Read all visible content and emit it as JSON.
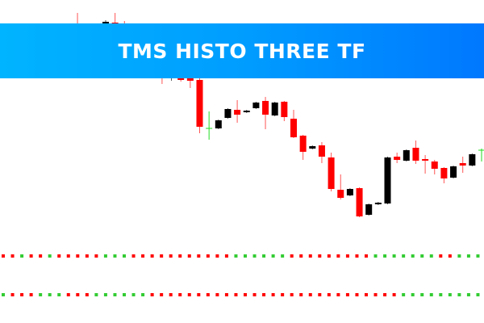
{
  "banner": {
    "title": "TMS HISTO THREE TF"
  },
  "colors": {
    "bull_body": "#000000",
    "bear_body": "#ff0000",
    "doji": "#22dd22",
    "dot_red": "#ff0000",
    "dot_green": "#33cc33",
    "banner_left": "#00b4ff",
    "banner_right": "#0078ff"
  },
  "chart_data": {
    "type": "candlestick",
    "candles": [
      {
        "o": 365,
        "h": 384,
        "l": 340,
        "c": 350
      },
      {
        "o": 345,
        "h": 360,
        "l": 340,
        "c": 355
      },
      {
        "o": 355,
        "h": 362,
        "l": 344,
        "c": 348
      },
      {
        "o": 360,
        "h": 375,
        "l": 357,
        "c": 373
      },
      {
        "o": 372,
        "h": 384,
        "l": 352,
        "c": 360
      },
      {
        "o": 362,
        "h": 374,
        "l": 345,
        "c": 350
      },
      {
        "o": 345,
        "h": 356,
        "l": 340,
        "c": 352
      },
      {
        "o": 350,
        "h": 355,
        "l": 330,
        "c": 335
      },
      {
        "o": 336,
        "h": 340,
        "l": 315,
        "c": 322
      },
      {
        "o": 322,
        "h": 326,
        "l": 296,
        "c": 310
      },
      {
        "o": 305,
        "h": 315,
        "l": 300,
        "c": 312
      },
      {
        "o": 304,
        "h": 306,
        "l": 299,
        "c": 301
      },
      {
        "o": 303,
        "h": 305,
        "l": 291,
        "c": 300
      },
      {
        "o": 301,
        "h": 303,
        "l": 235,
        "c": 243
      },
      {
        "o": 241,
        "h": 262,
        "l": 227,
        "c": 241
      },
      {
        "o": 241,
        "h": 252,
        "l": 240,
        "c": 251
      },
      {
        "o": 254,
        "h": 266,
        "l": 253,
        "c": 265
      },
      {
        "o": 264,
        "h": 276,
        "l": 248,
        "c": 258
      },
      {
        "o": 261,
        "h": 264,
        "l": 260,
        "c": 263
      },
      {
        "o": 266,
        "h": 274,
        "l": 265,
        "c": 273
      },
      {
        "o": 275,
        "h": 280,
        "l": 240,
        "c": 258
      },
      {
        "o": 257,
        "h": 274,
        "l": 256,
        "c": 273
      },
      {
        "o": 274,
        "h": 275,
        "l": 250,
        "c": 255
      },
      {
        "o": 253,
        "h": 264,
        "l": 229,
        "c": 230
      },
      {
        "o": 232,
        "h": 233,
        "l": 202,
        "c": 212
      },
      {
        "o": 216,
        "h": 220,
        "l": 215,
        "c": 219
      },
      {
        "o": 220,
        "h": 224,
        "l": 198,
        "c": 206
      },
      {
        "o": 205,
        "h": 211,
        "l": 163,
        "c": 166
      },
      {
        "o": 165,
        "h": 184,
        "l": 153,
        "c": 155
      },
      {
        "o": 158,
        "h": 167,
        "l": 157,
        "c": 166
      },
      {
        "o": 167,
        "h": 168,
        "l": 131,
        "c": 132
      },
      {
        "o": 134,
        "h": 148,
        "l": 133,
        "c": 147
      },
      {
        "o": 147,
        "h": 150,
        "l": 146,
        "c": 149
      },
      {
        "o": 148,
        "h": 206,
        "l": 147,
        "c": 205
      },
      {
        "o": 206,
        "h": 211,
        "l": 198,
        "c": 202
      },
      {
        "o": 201,
        "h": 215,
        "l": 200,
        "c": 214
      },
      {
        "o": 217,
        "h": 226,
        "l": 197,
        "c": 201
      },
      {
        "o": 203,
        "h": 208,
        "l": 185,
        "c": 201
      },
      {
        "o": 200,
        "h": 202,
        "l": 184,
        "c": 191
      },
      {
        "o": 192,
        "h": 193,
        "l": 173,
        "c": 179
      },
      {
        "o": 180,
        "h": 195,
        "l": 179,
        "c": 194
      },
      {
        "o": 198,
        "h": 206,
        "l": 186,
        "c": 195
      },
      {
        "o": 195,
        "h": 210,
        "l": 194,
        "c": 209
      },
      {
        "o": 214,
        "h": 216,
        "l": 200,
        "c": 214
      }
    ],
    "histo_rows": [
      "rrgrrgrrrrrgggrrrrrrrrrrrggggggrrrrrrrrrgggggggrrggg",
      "grrrgggrrrggggggrrrrrrrrrrrrrrrrrrrrrrrrrrrggggggggg"
    ]
  }
}
